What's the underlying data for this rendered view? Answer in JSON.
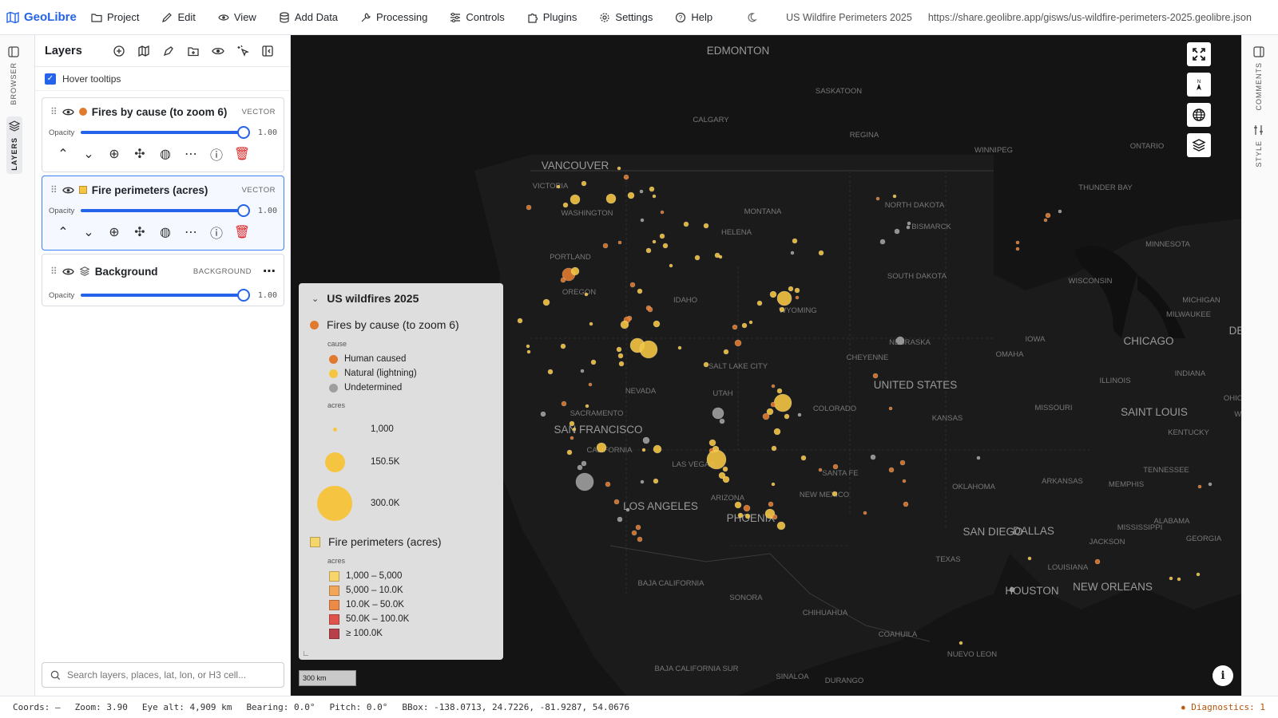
{
  "app": {
    "name": "GeoLibre"
  },
  "menu": [
    {
      "label": "Project",
      "icon": "folder-icon"
    },
    {
      "label": "Edit",
      "icon": "pencil-icon"
    },
    {
      "label": "View",
      "icon": "eye-icon"
    },
    {
      "label": "Add Data",
      "icon": "database-icon"
    },
    {
      "label": "Processing",
      "icon": "wrench-icon"
    },
    {
      "label": "Controls",
      "icon": "sliders-icon"
    },
    {
      "label": "Plugins",
      "icon": "puzzle-icon"
    },
    {
      "label": "Settings",
      "icon": "gear-icon"
    },
    {
      "label": "Help",
      "icon": "help-icon"
    }
  ],
  "project": {
    "title": "US Wildfire Perimeters 2025",
    "url": "https://share.geolibre.app/gisws/us-wildfire-perimeters-2025.geolibre.json"
  },
  "left_rail": {
    "browser_label": "BROWSER",
    "layers_label": "LAYERS"
  },
  "right_rail": {
    "comments_label": "COMMENTS",
    "style_label": "STYLE"
  },
  "layers_panel": {
    "title": "Layers",
    "hover_tooltips_label": "Hover tooltips",
    "hover_tooltips_checked": true,
    "opacity_label": "Opacity",
    "layers": [
      {
        "name": "Fires by cause (to zoom 6)",
        "type": "VECTOR",
        "opacity": "1.00",
        "swatch": "#e07a2e",
        "swatch_shape": "circle"
      },
      {
        "name": "Fire perimeters (acres)",
        "type": "VECTOR",
        "opacity": "1.00",
        "swatch": "#f5c542",
        "swatch_shape": "square"
      },
      {
        "name": "Background",
        "type": "BACKGROUND",
        "opacity": "1.00"
      }
    ],
    "search_placeholder": "Search layers, places, lat, lon, or H3 cell..."
  },
  "legend": {
    "title": "US wildfires 2025",
    "fires_title": "Fires by cause (to zoom 6)",
    "cause_label": "cause",
    "causes": [
      {
        "label": "Human caused",
        "color": "#e07a2e"
      },
      {
        "label": "Natural (lightning)",
        "color": "#f5c542"
      },
      {
        "label": "Undetermined",
        "color": "#9e9e9e"
      }
    ],
    "acres_label": "acres",
    "sizes": [
      {
        "label": "1,000",
        "value": 1000
      },
      {
        "label": "150.5K",
        "value": 150500
      },
      {
        "label": "300.0K",
        "value": 300000
      }
    ],
    "perimeters_title": "Fire perimeters (acres)",
    "perimeters_acres_label": "acres",
    "classes": [
      {
        "label": "1,000 – 5,000",
        "color": "#f7d56b"
      },
      {
        "label": "5,000 – 10.0K",
        "color": "#f2a65a"
      },
      {
        "label": "10.0K – 50.0K",
        "color": "#ee8a47"
      },
      {
        "label": "50.0K – 100.0K",
        "color": "#e0534a"
      },
      {
        "label": "≥ 100.0K",
        "color": "#b8404a"
      }
    ]
  },
  "map": {
    "scale_label": "300 km",
    "labels": [
      {
        "t": "EDMONTON",
        "size": "big"
      },
      {
        "t": "SASKATOON",
        "size": "small"
      },
      {
        "t": "CALGARY",
        "size": "small"
      },
      {
        "t": "REGINA",
        "size": "small"
      },
      {
        "t": "WINNIPEG",
        "size": "small"
      },
      {
        "t": "ONTARIO",
        "size": "small"
      },
      {
        "t": "THUNDER BAY",
        "size": "small"
      },
      {
        "t": "VANCOUVER",
        "size": "big"
      },
      {
        "t": "VICTORIA",
        "size": "small"
      },
      {
        "t": "WASHINGTON",
        "size": "small"
      },
      {
        "t": "MONTANA",
        "size": "small"
      },
      {
        "t": "NORTH DAKOTA",
        "size": "small"
      },
      {
        "t": "BISMARCK",
        "size": "small"
      },
      {
        "t": "HELENA",
        "size": "small"
      },
      {
        "t": "MINNESOTA",
        "size": "small"
      },
      {
        "t": "PORTLAND",
        "size": "small"
      },
      {
        "t": "OREGON",
        "size": "small"
      },
      {
        "t": "SOUTH DAKOTA",
        "size": "small"
      },
      {
        "t": "WISCONSIN",
        "size": "small"
      },
      {
        "t": "IDAHO",
        "size": "small"
      },
      {
        "t": "WYOMING",
        "size": "small"
      },
      {
        "t": "MICHIGAN",
        "size": "small"
      },
      {
        "t": "MILWAUKEE",
        "size": "small"
      },
      {
        "t": "NEBRASKA",
        "size": "small"
      },
      {
        "t": "IOWA",
        "size": "small"
      },
      {
        "t": "CHICAGO",
        "size": "big"
      },
      {
        "t": "OMAHA",
        "size": "small"
      },
      {
        "t": "CHEYENNE",
        "size": "small"
      },
      {
        "t": "SALT LAKE CITY",
        "size": "small"
      },
      {
        "t": "UNITED STATES",
        "size": "big"
      },
      {
        "t": "ILLINOIS",
        "size": "small"
      },
      {
        "t": "INDIANA",
        "size": "small"
      },
      {
        "t": "OHIO",
        "size": "small"
      },
      {
        "t": "NEVADA",
        "size": "small"
      },
      {
        "t": "UTAH",
        "size": "small"
      },
      {
        "t": "COLORADO",
        "size": "small"
      },
      {
        "t": "KANSAS",
        "size": "small"
      },
      {
        "t": "MISSOURI",
        "size": "small"
      },
      {
        "t": "SAINT LOUIS",
        "size": "big"
      },
      {
        "t": "KENTUCKY",
        "size": "small"
      },
      {
        "t": "SACRAMENTO",
        "size": "small"
      },
      {
        "t": "SAN FRANCISCO",
        "size": "big"
      },
      {
        "t": "CALIFORNIA",
        "size": "small"
      },
      {
        "t": "LAS VEGAS",
        "size": "small"
      },
      {
        "t": "SANTA FE",
        "size": "small"
      },
      {
        "t": "TENNESSEE",
        "size": "small"
      },
      {
        "t": "ARKANSAS",
        "size": "small"
      },
      {
        "t": "OKLAHOMA",
        "size": "small"
      },
      {
        "t": "MEMPHIS",
        "size": "small"
      },
      {
        "t": "ARIZONA",
        "size": "small"
      },
      {
        "t": "NEW MEXICO",
        "size": "small"
      },
      {
        "t": "LOS ANGELES",
        "size": "big"
      },
      {
        "t": "PHOENIX",
        "size": "big"
      },
      {
        "t": "MISSISSIPPI",
        "size": "small"
      },
      {
        "t": "ALABAMA",
        "size": "small"
      },
      {
        "t": "GEORGIA",
        "size": "small"
      },
      {
        "t": "SAN DIEGO",
        "size": "big"
      },
      {
        "t": "DALLAS",
        "size": "big"
      },
      {
        "t": "JACKSON",
        "size": "small"
      },
      {
        "t": "TEXAS",
        "size": "small"
      },
      {
        "t": "LOUISIANA",
        "size": "small"
      },
      {
        "t": "BAJA CALIFORNIA",
        "size": "small"
      },
      {
        "t": "HOUSTON",
        "size": "big"
      },
      {
        "t": "NEW ORLEANS",
        "size": "big"
      },
      {
        "t": "SONORA",
        "size": "small"
      },
      {
        "t": "CHIHUAHUA",
        "size": "small"
      },
      {
        "t": "COAHUILA",
        "size": "small"
      },
      {
        "t": "NUEVO LEON",
        "size": "small"
      },
      {
        "t": "BAJA CALIFORNIA SUR",
        "size": "small"
      },
      {
        "t": "SINALOA",
        "size": "small"
      },
      {
        "t": "DURANGO",
        "size": "small"
      },
      {
        "t": "DE",
        "size": "big"
      },
      {
        "t": "WI",
        "size": "small"
      }
    ]
  },
  "status": {
    "coords": "Coords: —",
    "zoom": "Zoom: 3.90",
    "eye_alt": "Eye alt: 4,909 km",
    "bearing": "Bearing: 0.0°",
    "pitch": "Pitch: 0.0°",
    "bbox": "BBox: -138.0713, 24.7226, -81.9287, 54.0676",
    "diagnostics": "Diagnostics: 1"
  }
}
